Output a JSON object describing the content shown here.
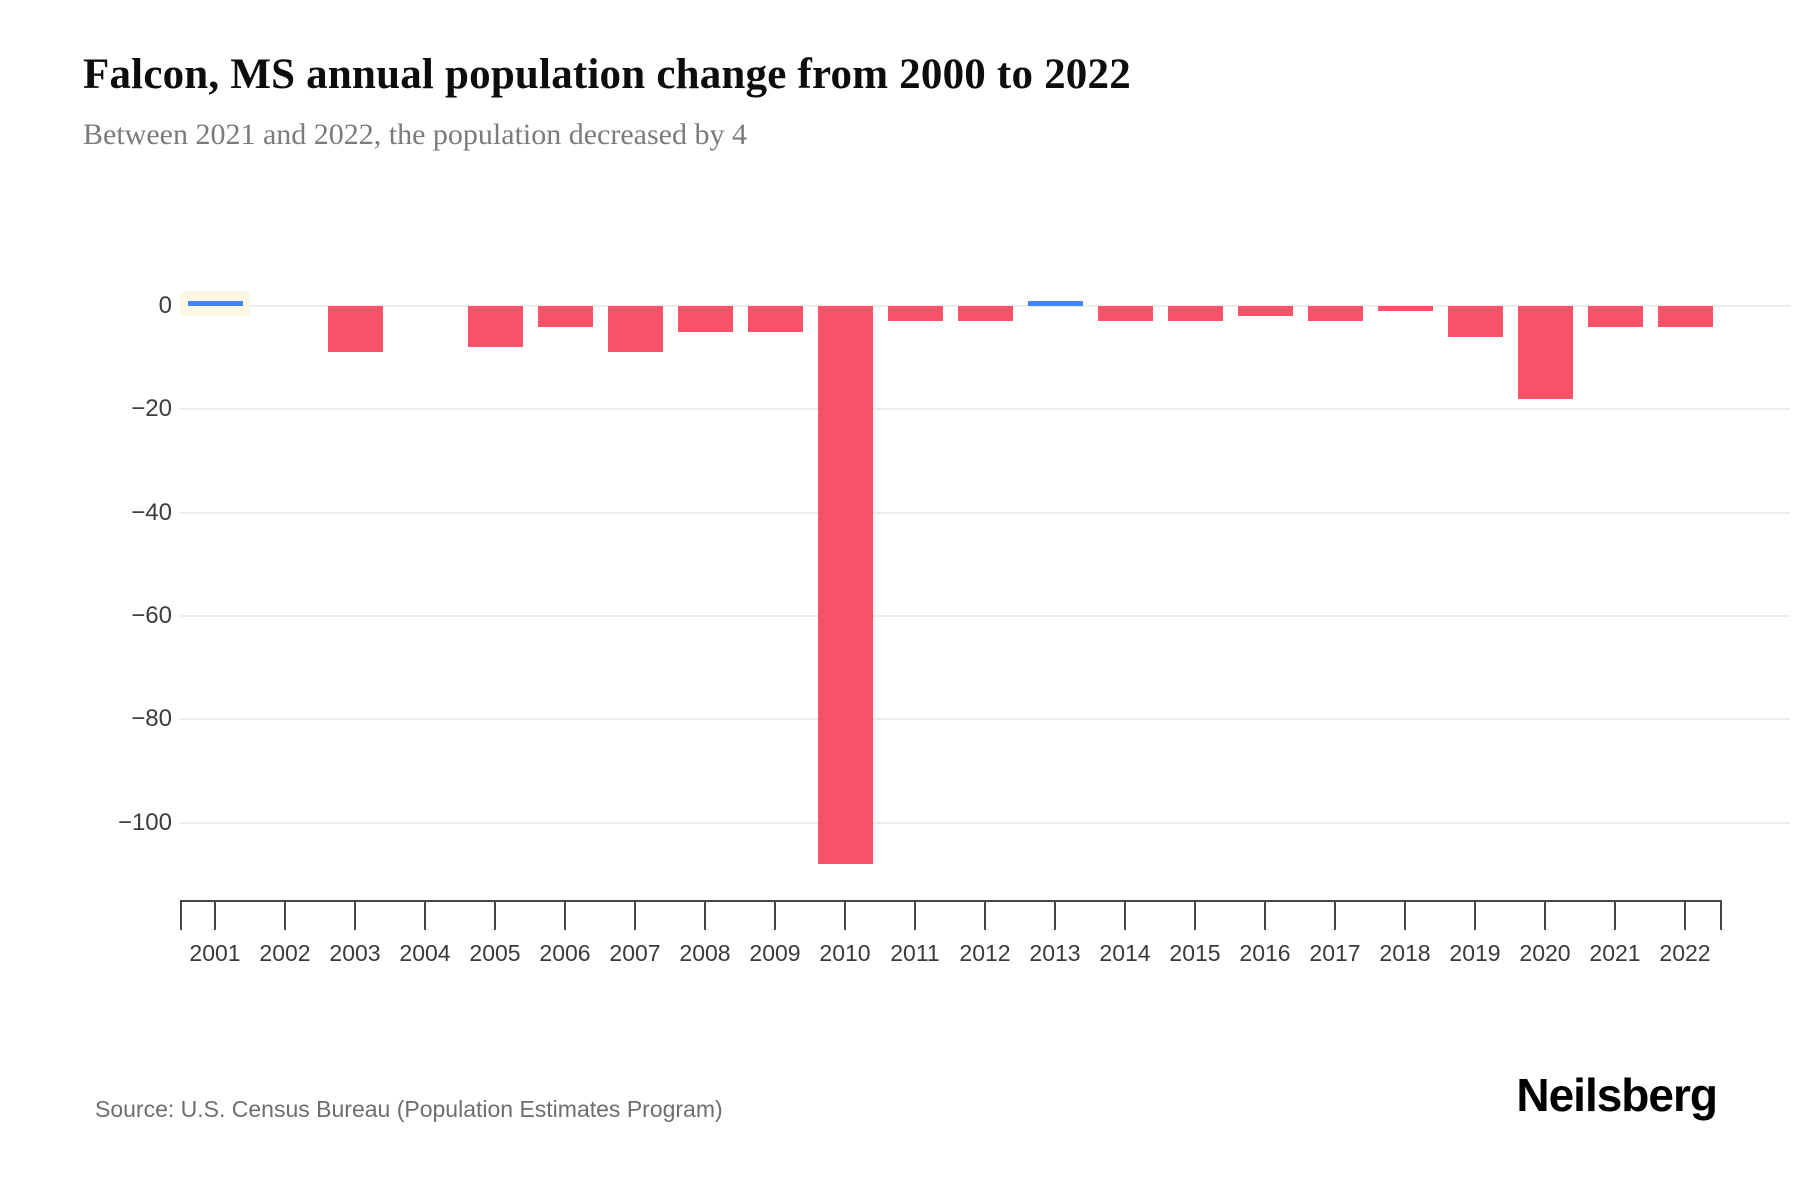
{
  "header": {
    "title": "Falcon, MS annual population change from 2000 to 2022",
    "subtitle": "Between 2021 and 2022, the population decreased by 4"
  },
  "chart_data": {
    "type": "bar",
    "title": "Falcon, MS annual population change from 2000 to 2022",
    "subtitle": "Between 2021 and 2022, the population decreased by 4",
    "categories": [
      "2001",
      "2002",
      "2003",
      "2004",
      "2005",
      "2006",
      "2007",
      "2008",
      "2009",
      "2010",
      "2011",
      "2012",
      "2013",
      "2014",
      "2015",
      "2016",
      "2017",
      "2018",
      "2019",
      "2020",
      "2021",
      "2022"
    ],
    "values": [
      1,
      0,
      -9,
      0,
      -8,
      -4,
      -9,
      -5,
      -5,
      -108,
      -3,
      -3,
      1,
      -3,
      -3,
      -2,
      -3,
      -1,
      -6,
      -18,
      -4,
      -4
    ],
    "xlabel": "",
    "ylabel": "",
    "ylim": [
      -115,
      5
    ],
    "yticks": [
      0,
      -20,
      -40,
      -60,
      -80,
      -100
    ],
    "ytick_labels": [
      "0",
      "−20",
      "−40",
      "−60",
      "−80",
      "−100"
    ],
    "grid": true,
    "legend": false,
    "positive_color": "#4285F4",
    "negative_color": "#FA5268",
    "gridline_color": "#ececec",
    "highlighted_category": "2001"
  },
  "footer": {
    "source": "Source: U.S. Census Bureau (Population Estimates Program)",
    "logo": "Neilsberg"
  }
}
